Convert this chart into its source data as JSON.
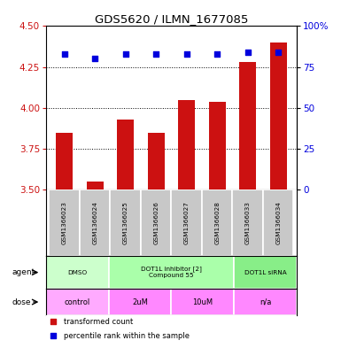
{
  "title": "GDS5620 / ILMN_1677085",
  "samples": [
    "GSM1366023",
    "GSM1366024",
    "GSM1366025",
    "GSM1366026",
    "GSM1366027",
    "GSM1366028",
    "GSM1366033",
    "GSM1366034"
  ],
  "bar_values": [
    3.85,
    3.55,
    3.93,
    3.85,
    4.05,
    4.04,
    4.28,
    4.4
  ],
  "dot_values": [
    83,
    80,
    83,
    83,
    83,
    83,
    84,
    84
  ],
  "ylim_left": [
    3.5,
    4.5
  ],
  "yticks_left": [
    3.5,
    3.75,
    4.0,
    4.25,
    4.5
  ],
  "ylim_right": [
    0,
    100
  ],
  "yticks_right": [
    0,
    25,
    50,
    75,
    100
  ],
  "bar_color": "#cc1111",
  "dot_color": "#0000dd",
  "bar_bottom": 3.5,
  "agent_data": [
    {
      "label": "DMSO",
      "cols": [
        0,
        2
      ],
      "color": "#ccffcc"
    },
    {
      "label": "DOT1L inhibitor [2]\nCompound 55",
      "cols": [
        2,
        6
      ],
      "color": "#aaffaa"
    },
    {
      "label": "DOT1L siRNA",
      "cols": [
        6,
        8
      ],
      "color": "#88ee88"
    }
  ],
  "dose_data": [
    {
      "label": "control",
      "cols": [
        0,
        2
      ],
      "color": "#ffaaff"
    },
    {
      "label": "2uM",
      "cols": [
        2,
        4
      ],
      "color": "#ff88ff"
    },
    {
      "label": "10uM",
      "cols": [
        4,
        6
      ],
      "color": "#ff88ff"
    },
    {
      "label": "n/a",
      "cols": [
        6,
        8
      ],
      "color": "#ff88ff"
    }
  ],
  "legend_items": [
    "transformed count",
    "percentile rank within the sample"
  ],
  "ylabel_left_color": "#cc1111",
  "ylabel_right_color": "#0000dd",
  "sample_bg_color": "#c8c8c8",
  "n_samples": 8
}
